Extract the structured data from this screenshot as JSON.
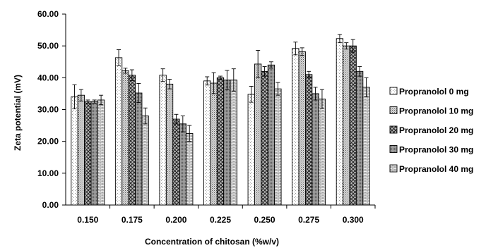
{
  "chart_data": {
    "type": "bar",
    "xlabel": "Concentration of chitosan (%w/v)",
    "ylabel": "Zeta potential (mV)",
    "ylim": [
      0,
      60
    ],
    "yticks": [
      "0.00",
      "10.00",
      "20.00",
      "30.00",
      "40.00",
      "50.00",
      "60.00"
    ],
    "categories": [
      "0.150",
      "0.175",
      "0.200",
      "0.225",
      "0.250",
      "0.275",
      "0.300"
    ],
    "legend_position": "right",
    "grid": false,
    "error_bars": true,
    "series": [
      {
        "name": "Propranolol 0 mg",
        "pattern": "dots-light",
        "values": [
          34.0,
          46.3,
          40.8,
          39.0,
          34.8,
          49.2,
          52.3
        ],
        "errors": [
          3.8,
          2.5,
          2.0,
          1.3,
          2.5,
          2.0,
          1.3
        ]
      },
      {
        "name": "Propranolol 10 mg",
        "pattern": "dots-dark",
        "values": [
          34.5,
          42.2,
          38.0,
          38.3,
          44.3,
          48.2,
          50.0
        ],
        "errors": [
          1.8,
          0.8,
          1.5,
          3.3,
          4.3,
          1.2,
          1.0
        ]
      },
      {
        "name": "Propranolol 20 mg",
        "pattern": "crosshatch",
        "values": [
          32.5,
          40.8,
          27.0,
          40.0,
          42.0,
          41.0,
          50.0
        ],
        "errors": [
          0.5,
          1.7,
          1.5,
          0.5,
          1.5,
          1.0,
          2.0
        ]
      },
      {
        "name": "Propranolol 30 mg",
        "pattern": "dense",
        "values": [
          32.5,
          35.2,
          25.5,
          39.3,
          44.0,
          35.0,
          42.0
        ],
        "errors": [
          0.5,
          3.0,
          2.5,
          3.0,
          1.0,
          2.0,
          1.5
        ]
      },
      {
        "name": "Propranolol 40 mg",
        "pattern": "bricks",
        "values": [
          33.0,
          28.0,
          22.5,
          39.3,
          36.5,
          33.3,
          37.0
        ],
        "errors": [
          1.5,
          2.5,
          2.5,
          3.5,
          2.0,
          3.0,
          3.0
        ]
      }
    ]
  }
}
